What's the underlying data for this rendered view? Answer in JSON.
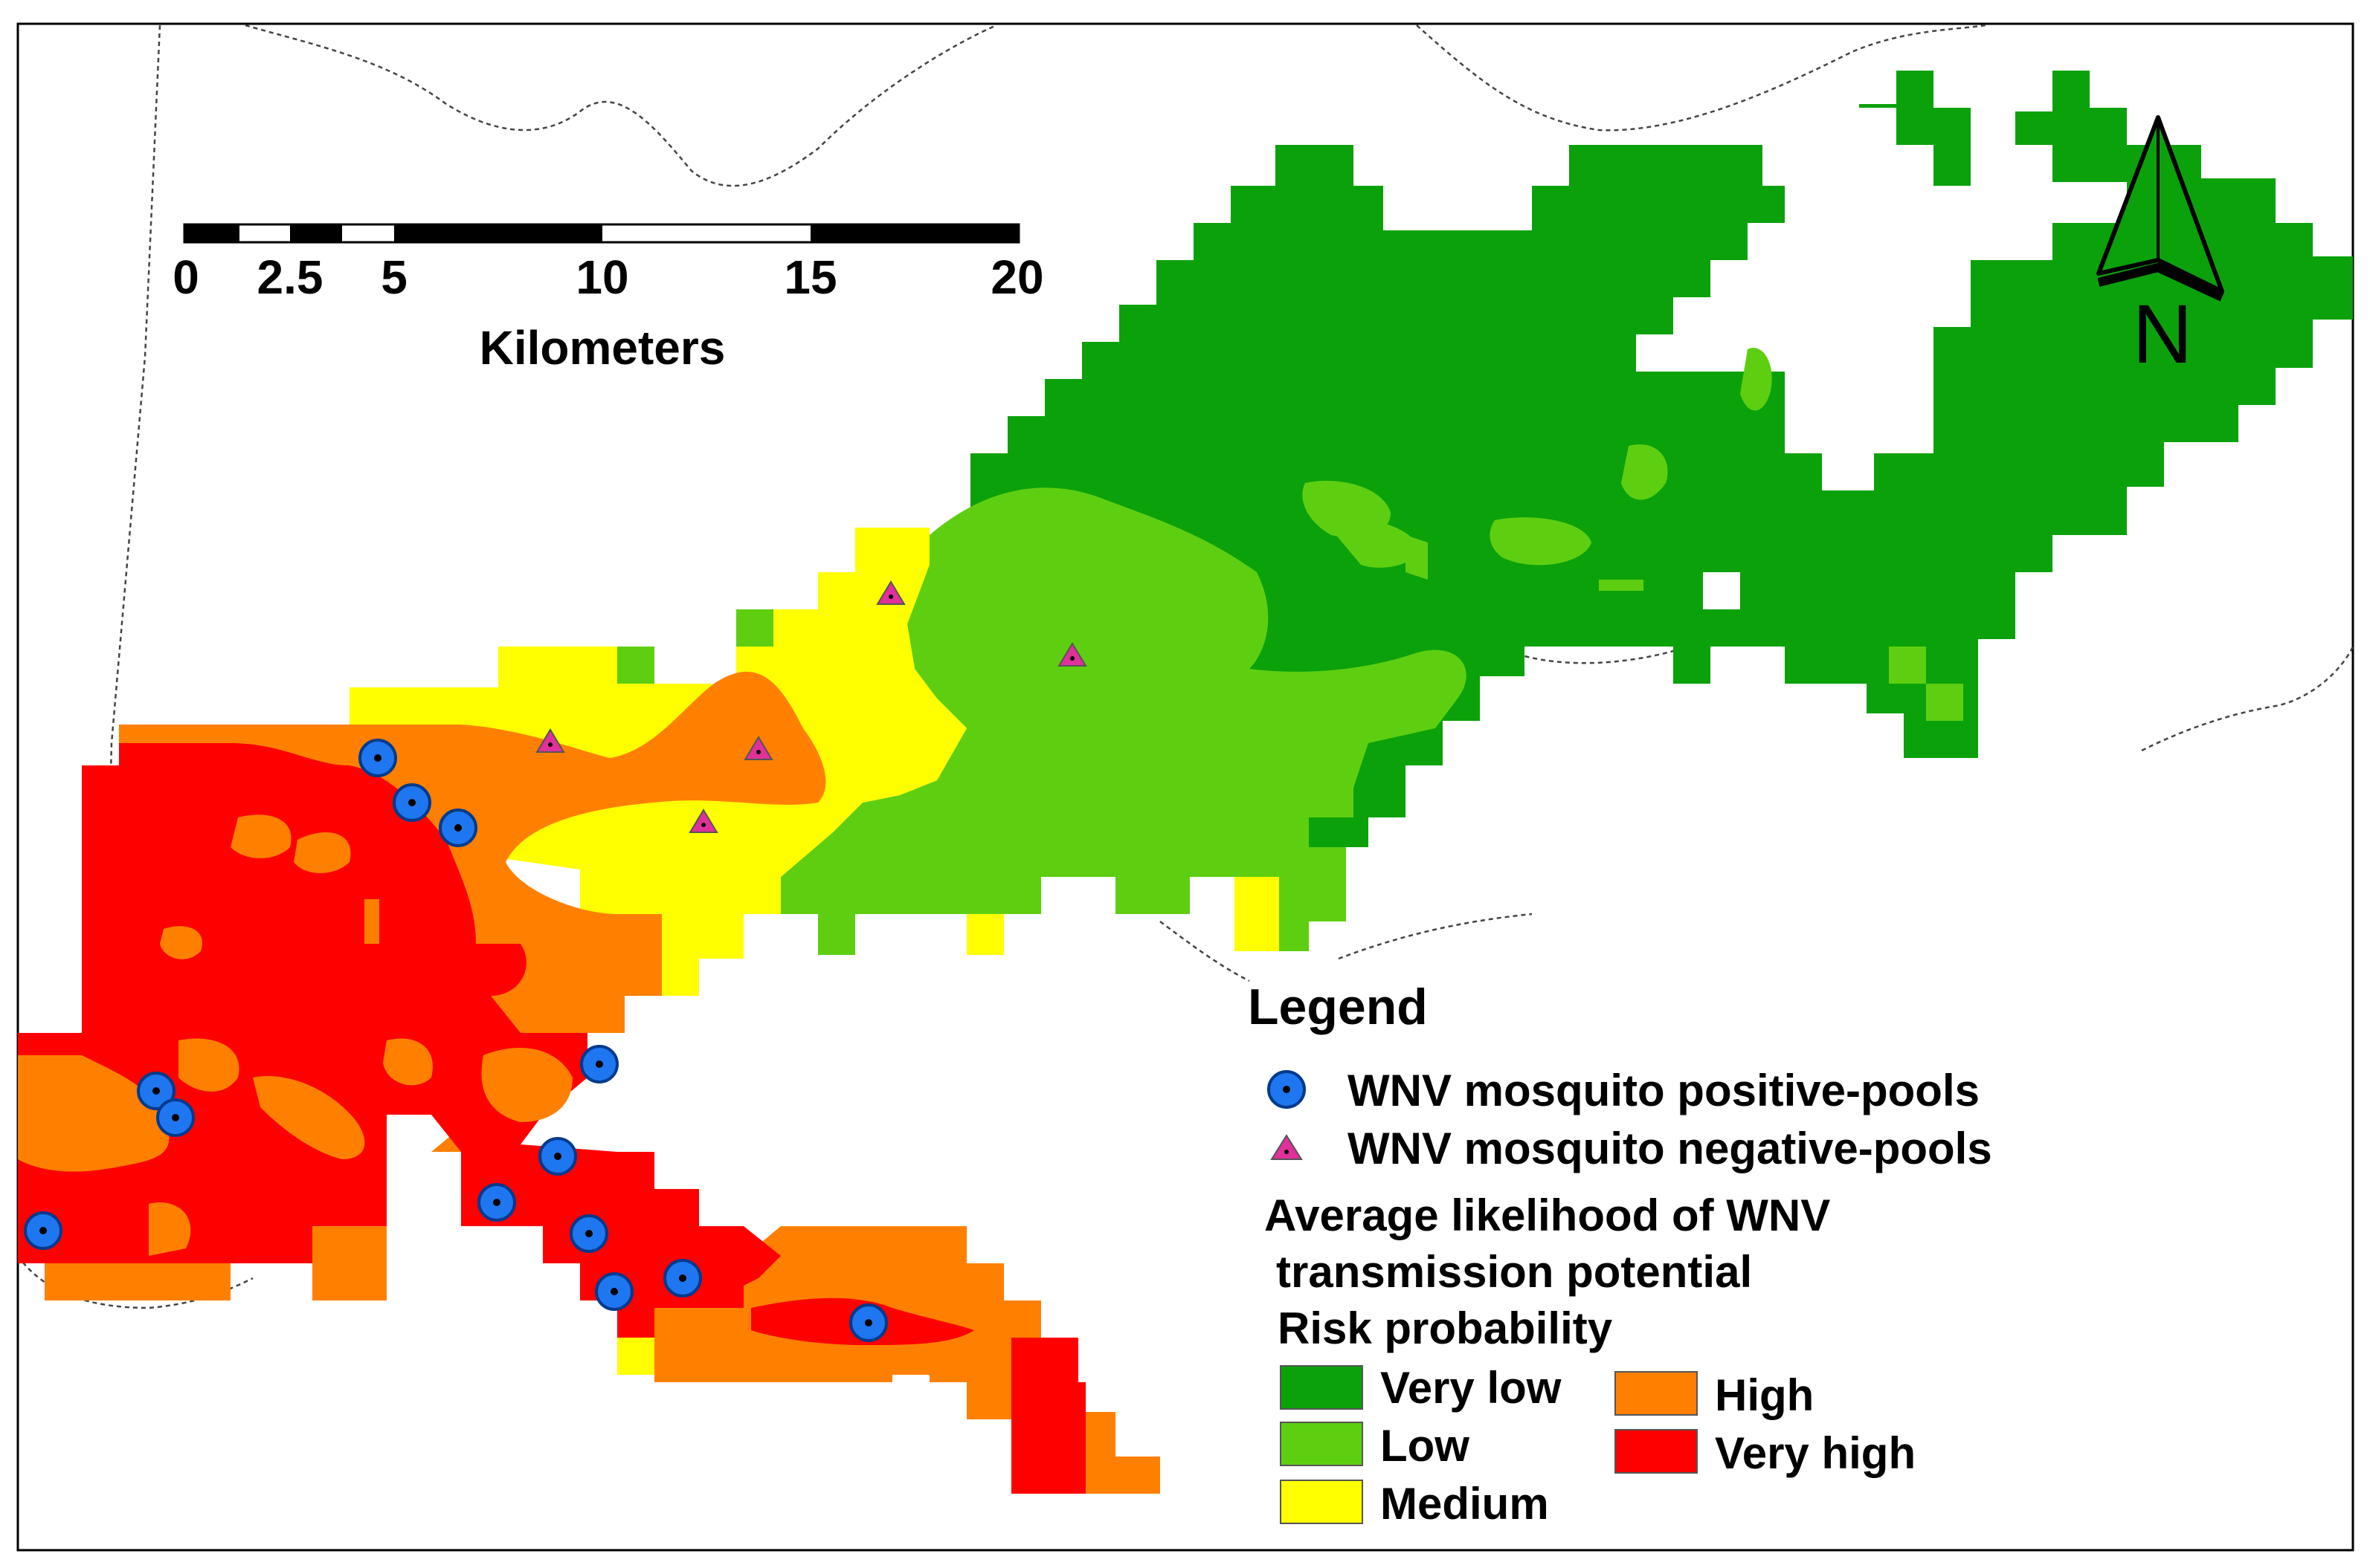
{
  "scale_bar": {
    "ticks": [
      "0",
      "2.5",
      "5",
      "10",
      "15",
      "20"
    ],
    "unit": "Kilometers"
  },
  "north_arrow": {
    "label": "N",
    "icon": "north-arrow-icon"
  },
  "legend": {
    "title": "Legend",
    "points": [
      {
        "label": "WNV mosquito positive-pools",
        "icon": "blue-circle-dot-icon",
        "color": "#1E77F0"
      },
      {
        "label": "WNV mosquito negative-pools",
        "icon": "magenta-triangle-icon",
        "color": "#E0309A"
      }
    ],
    "subtitle_lines": [
      "Average likelihood of WNV",
      "transmission potential",
      "Risk probability"
    ],
    "classes": [
      {
        "label": "Very low",
        "color": "#0BA10B"
      },
      {
        "label": "Low",
        "color": "#5ECF10"
      },
      {
        "label": "Medium",
        "color": "#FFFF00"
      },
      {
        "label": "High",
        "color": "#FF8000"
      },
      {
        "label": "Very high",
        "color": "#FF0000"
      }
    ]
  }
}
